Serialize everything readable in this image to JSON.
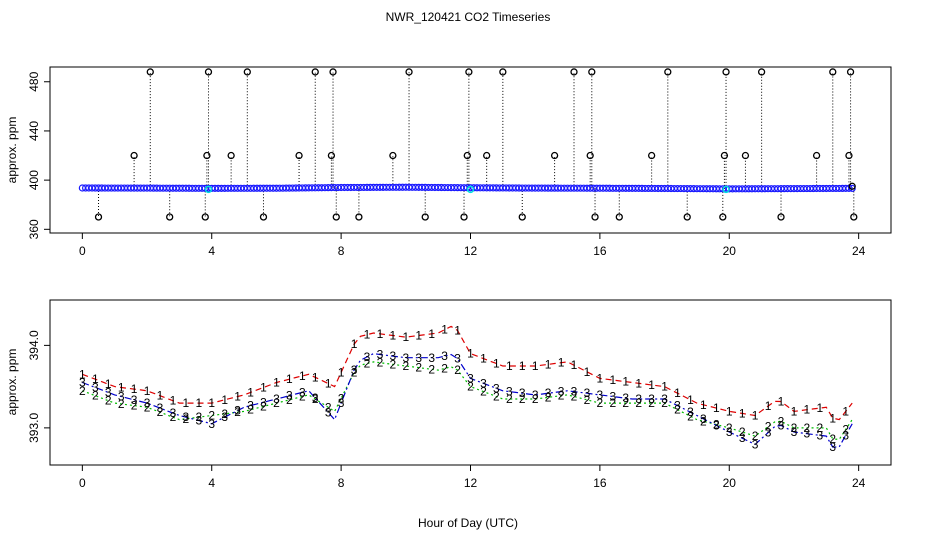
{
  "title": "NWR_120421  CO2 Timeseries",
  "xlabel": "Hour of Day (UTC)",
  "colors": {
    "axis": "#000000",
    "top_series": "#1a1aff",
    "top_highlight": "#00e0e0",
    "top_outliers": "#000000",
    "s1": "#dd0000",
    "s2": "#00bb00",
    "s3": "#0000cc"
  },
  "chart_data": [
    {
      "type": "scatter",
      "name": "top-panel",
      "ylabel": "approx. ppm",
      "xlim": [
        -1,
        25
      ],
      "ylim": [
        357,
        492
      ],
      "xticks": [
        0,
        4,
        8,
        12,
        16,
        20,
        24
      ],
      "yticks": [
        360,
        400,
        440,
        480
      ],
      "baseline_series": {
        "name": "co2",
        "x": [
          0,
          2,
          4,
          6,
          8,
          10,
          12,
          14,
          16,
          18,
          20,
          22,
          23.8
        ],
        "y": [
          393.6,
          393.5,
          393.3,
          393.4,
          394.0,
          394.2,
          393.8,
          393.5,
          393.4,
          393.2,
          392.9,
          393.1,
          393.3
        ]
      },
      "highlights": {
        "x": [
          3.9,
          12.0,
          19.9
        ],
        "y": [
          392.5,
          392.5,
          392.5
        ]
      },
      "outliers": {
        "x": [
          0.5,
          1.6,
          2.1,
          2.7,
          3.8,
          3.85,
          3.9,
          4.6,
          5.1,
          5.6,
          6.7,
          7.2,
          7.7,
          7.75,
          7.85,
          8.55,
          9.6,
          10.1,
          10.6,
          11.8,
          11.9,
          11.95,
          12.5,
          13.0,
          13.6,
          14.6,
          15.2,
          15.7,
          15.75,
          15.85,
          16.6,
          17.6,
          18.1,
          18.7,
          19.8,
          19.85,
          19.9,
          20.5,
          21.0,
          21.6,
          22.7,
          23.2,
          23.7,
          23.75,
          23.8,
          23.85
        ]
      },
      "outliers_y": [
        370,
        420,
        488,
        370,
        370,
        420,
        488,
        420,
        488,
        370,
        420,
        488,
        420,
        488,
        370,
        370,
        420,
        488,
        370,
        370,
        420,
        488,
        420,
        488,
        370,
        420,
        488,
        420,
        488,
        370,
        370,
        420,
        488,
        370,
        370,
        420,
        488,
        420,
        488,
        370,
        420,
        488,
        420,
        488,
        395,
        370
      ]
    },
    {
      "type": "line",
      "name": "bottom-panel",
      "ylabel": "approx. ppm",
      "xlim": [
        -1,
        25
      ],
      "ylim": [
        392.55,
        394.55
      ],
      "xticks": [
        0,
        4,
        8,
        12,
        16,
        20,
        24
      ],
      "yticks": [
        393.0,
        394.0
      ],
      "ytick_labels": [
        "393.0",
        "394.0"
      ],
      "x": [
        0,
        1,
        2,
        3,
        4,
        5,
        6,
        7,
        7.8,
        8.5,
        9,
        10,
        11,
        11.5,
        12,
        13,
        14,
        15,
        16,
        17,
        18,
        19,
        20,
        20.8,
        21.5,
        22,
        23,
        23.3,
        23.8
      ],
      "series": [
        {
          "name": "1",
          "values": [
            393.65,
            393.5,
            393.45,
            393.3,
            393.3,
            393.4,
            393.55,
            393.65,
            393.5,
            394.1,
            394.15,
            394.1,
            394.15,
            394.25,
            393.9,
            393.75,
            393.75,
            393.8,
            393.6,
            393.55,
            393.5,
            393.3,
            393.2,
            393.15,
            393.35,
            393.2,
            393.25,
            393.05,
            393.3
          ]
        },
        {
          "name": "2",
          "values": [
            393.45,
            393.3,
            393.25,
            393.1,
            393.15,
            393.2,
            393.3,
            393.4,
            393.2,
            393.75,
            393.8,
            393.75,
            393.7,
            393.75,
            393.5,
            393.35,
            393.35,
            393.4,
            393.3,
            393.3,
            393.3,
            393.1,
            393.0,
            392.9,
            393.1,
            393.0,
            393.0,
            392.8,
            393.1
          ]
        },
        {
          "name": "3",
          "values": [
            393.55,
            393.4,
            393.3,
            393.15,
            393.05,
            393.25,
            393.35,
            393.45,
            393.1,
            393.8,
            393.9,
            393.85,
            393.85,
            393.9,
            393.6,
            393.45,
            393.4,
            393.45,
            393.4,
            393.35,
            393.35,
            393.15,
            392.95,
            392.8,
            393.05,
            392.95,
            392.9,
            392.7,
            393.05
          ]
        }
      ]
    }
  ]
}
